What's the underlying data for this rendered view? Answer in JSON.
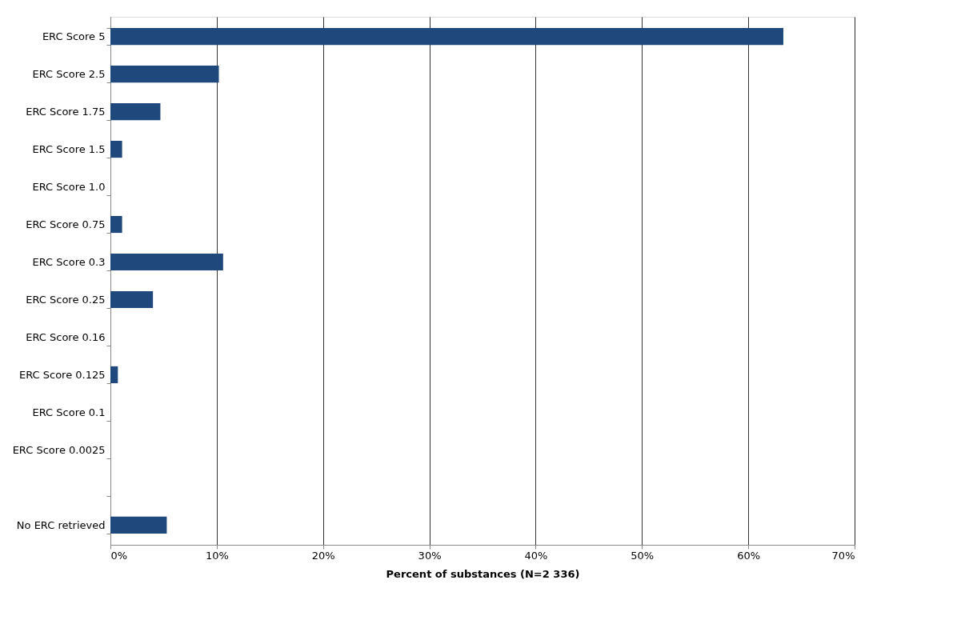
{
  "chart_data": {
    "type": "bar",
    "orientation": "horizontal",
    "xlabel": "Percent of substances (N=2 336)",
    "categories": [
      "ERC Score 5",
      "ERC Score 2.5",
      "ERC Score 1.75",
      "ERC Score 1.5",
      "ERC Score 1.0",
      "ERC Score 0.75",
      "ERC Score 0.3",
      "ERC Score 0.25",
      "ERC Score 0.16",
      "ERC Score 0.125",
      "ERC Score 0.1",
      "ERC Score 0.0025",
      null,
      "No ERC retrieved"
    ],
    "values": [
      63.3,
      10.2,
      4.7,
      1.1,
      0,
      1.1,
      10.6,
      4.0,
      0,
      0.7,
      0,
      0,
      0,
      5.3
    ],
    "color": "#1f497d",
    "xlim": [
      0,
      70
    ],
    "xticks": [
      {
        "value": 0,
        "label": "0%"
      },
      {
        "value": 10,
        "label": "10%"
      },
      {
        "value": 20,
        "label": "20%"
      },
      {
        "value": 30,
        "label": "30%"
      },
      {
        "value": 40,
        "label": "40%"
      },
      {
        "value": 50,
        "label": "50%"
      },
      {
        "value": 60,
        "label": "60%"
      },
      {
        "value": 70,
        "label": "70%"
      }
    ],
    "grid": "x"
  }
}
